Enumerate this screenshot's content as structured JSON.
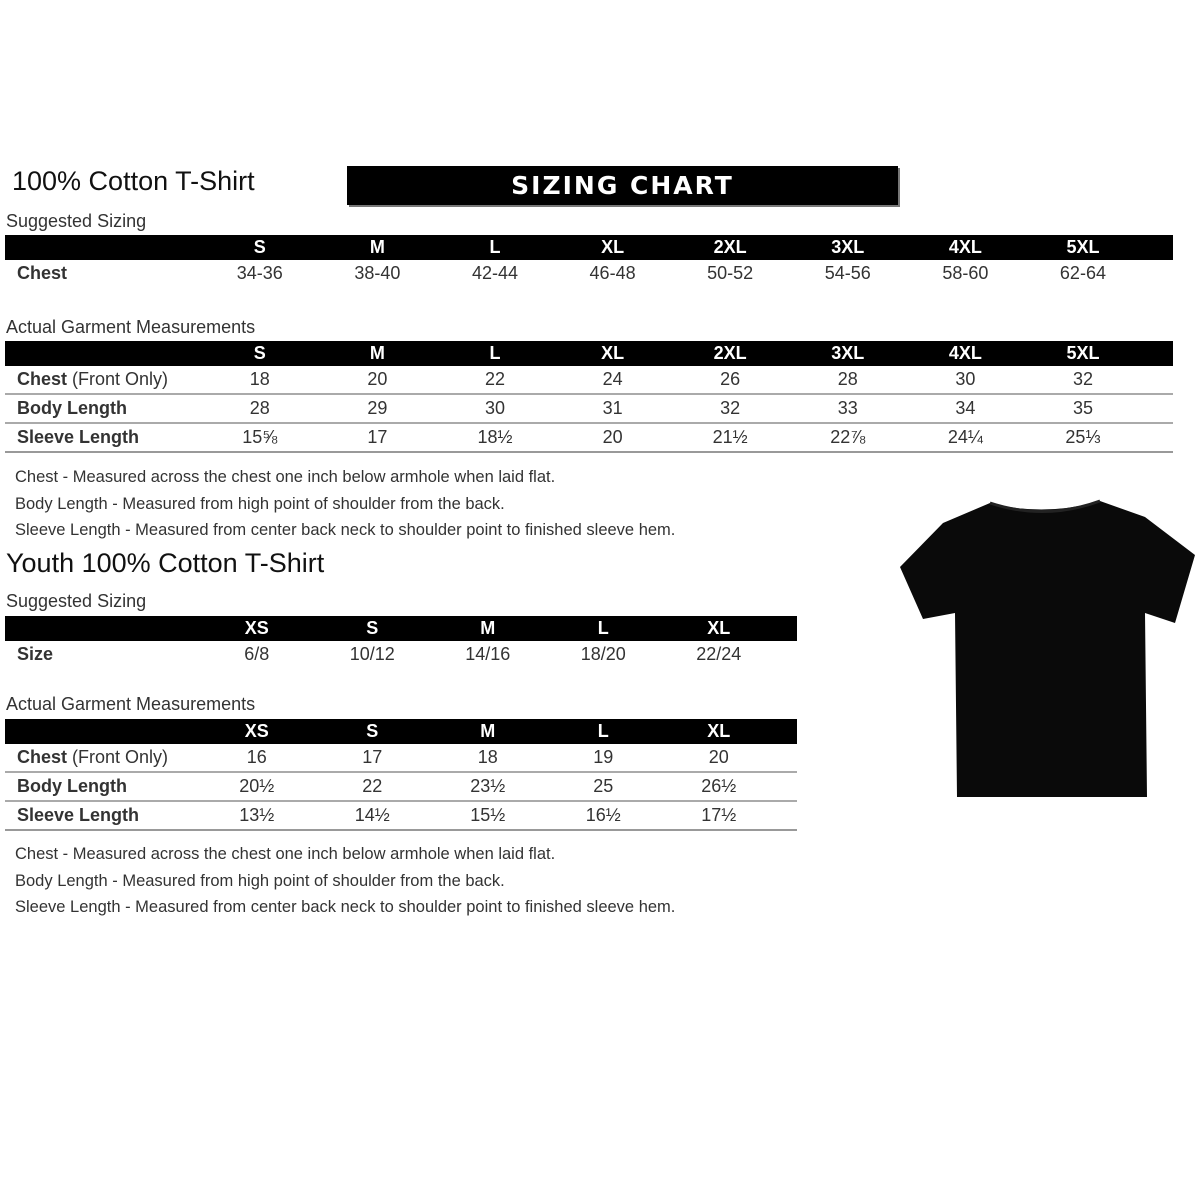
{
  "adult": {
    "title": "100% Cotton T-Shirt",
    "banner": "SIZING CHART",
    "suggested": {
      "label": "Suggested Sizing",
      "sizes": [
        "S",
        "M",
        "L",
        "XL",
        "2XL",
        "3XL",
        "4XL",
        "5XL"
      ],
      "rows": [
        {
          "label": "Chest",
          "values": [
            "34-36",
            "38-40",
            "42-44",
            "46-48",
            "50-52",
            "54-56",
            "58-60",
            "62-64"
          ]
        }
      ]
    },
    "actual": {
      "label": "Actual Garment Measurements",
      "sizes": [
        "S",
        "M",
        "L",
        "XL",
        "2XL",
        "3XL",
        "4XL",
        "5XL"
      ],
      "rows": [
        {
          "label": "Chest",
          "label_note": "(Front Only)",
          "values": [
            "18",
            "20",
            "22",
            "24",
            "26",
            "28",
            "30",
            "32"
          ]
        },
        {
          "label": "Body Length",
          "values": [
            "28",
            "29",
            "30",
            "31",
            "32",
            "33",
            "34",
            "35"
          ]
        },
        {
          "label": "Sleeve Length",
          "values": [
            "15⅝",
            "17",
            "18½",
            "20",
            "21½",
            "22⅞",
            "24¼",
            "25⅓"
          ]
        }
      ]
    },
    "notes": [
      "Chest - Measured across the chest one inch below armhole when laid flat.",
      "Body Length - Measured from high point of shoulder from the back.",
      "Sleeve Length - Measured from center back neck to shoulder point to finished sleeve hem."
    ]
  },
  "youth": {
    "title": "Youth 100% Cotton T-Shirt",
    "suggested": {
      "label": "Suggested Sizing",
      "sizes": [
        "XS",
        "S",
        "M",
        "L",
        "XL"
      ],
      "rows": [
        {
          "label": "Size",
          "values": [
            "6/8",
            "10/12",
            "14/16",
            "18/20",
            "22/24"
          ]
        }
      ]
    },
    "actual": {
      "label": "Actual Garment Measurements",
      "sizes": [
        "XS",
        "S",
        "M",
        "L",
        "XL"
      ],
      "rows": [
        {
          "label": "Chest",
          "label_note": "(Front Only)",
          "values": [
            "16",
            "17",
            "18",
            "19",
            "20"
          ]
        },
        {
          "label": "Body Length",
          "values": [
            "20½",
            "22",
            "23½",
            "25",
            "26½"
          ]
        },
        {
          "label": "Sleeve Length",
          "values": [
            "13½",
            "14½",
            "15½",
            "16½",
            "17½"
          ]
        }
      ]
    },
    "notes": [
      "Chest - Measured across the chest one inch below armhole when laid flat.",
      "Body Length - Measured from high point of shoulder from the back.",
      "Sleeve Length - Measured from center back neck to shoulder point to finished sleeve hem."
    ]
  },
  "image": {
    "icon": "tshirt-icon",
    "color": "#0a0a0a"
  }
}
